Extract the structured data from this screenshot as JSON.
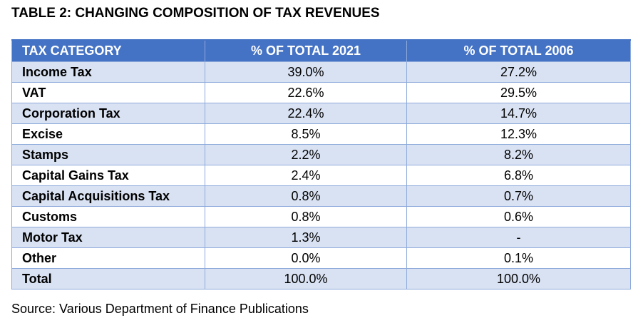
{
  "title": "TABLE 2: CHANGING COMPOSITION OF TAX REVENUES",
  "table": {
    "headers": [
      "TAX CATEGORY",
      "% OF TOTAL 2021",
      "% OF TOTAL 2006"
    ],
    "rows": [
      {
        "category": "Income Tax",
        "pct_2021": "39.0%",
        "pct_2006": "27.2%"
      },
      {
        "category": "VAT",
        "pct_2021": "22.6%",
        "pct_2006": "29.5%"
      },
      {
        "category": "Corporation Tax",
        "pct_2021": "22.4%",
        "pct_2006": "14.7%"
      },
      {
        "category": "Excise",
        "pct_2021": "8.5%",
        "pct_2006": "12.3%"
      },
      {
        "category": "Stamps",
        "pct_2021": "2.2%",
        "pct_2006": "8.2%"
      },
      {
        "category": "Capital Gains Tax",
        "pct_2021": "2.4%",
        "pct_2006": "6.8%"
      },
      {
        "category": "Capital Acquisitions Tax",
        "pct_2021": "0.8%",
        "pct_2006": "0.7%"
      },
      {
        "category": "Customs",
        "pct_2021": "0.8%",
        "pct_2006": "0.6%"
      },
      {
        "category": "Motor Tax",
        "pct_2021": "1.3%",
        "pct_2006": "-"
      },
      {
        "category": "Other",
        "pct_2021": "0.0%",
        "pct_2006": "0.1%"
      },
      {
        "category": "Total",
        "pct_2021": "100.0%",
        "pct_2006": "100.0%"
      }
    ]
  },
  "source": "Source: Various Department of Finance Publications",
  "colors": {
    "header_bg": "#4472c4",
    "header_text": "#ffffff",
    "band_row": "#d9e2f3",
    "plain_row": "#ffffff",
    "border": "#8eaadb"
  }
}
